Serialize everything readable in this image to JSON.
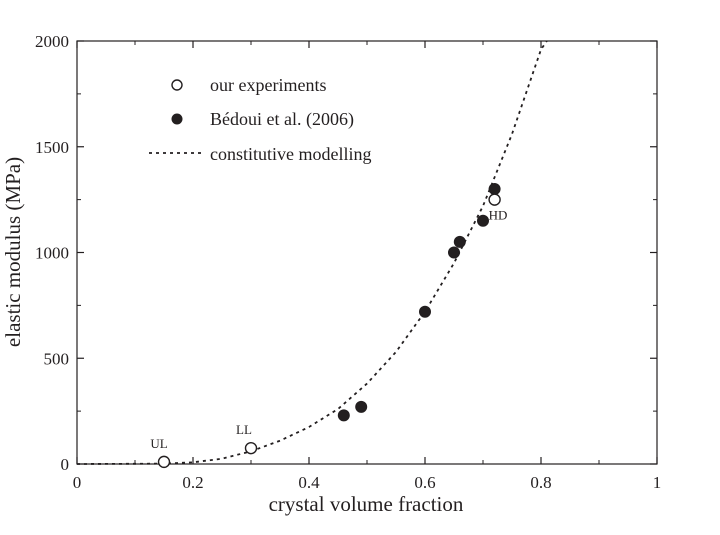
{
  "chart_data": {
    "type": "scatter",
    "xlabel": "crystal volume fraction",
    "ylabel": "elastic modulus (MPa)",
    "xlim": [
      0,
      1
    ],
    "ylim": [
      0,
      2000
    ],
    "xticks": [
      "0",
      "0.2",
      "0.4",
      "0.6",
      "0.8",
      "1"
    ],
    "yticks": [
      "0",
      "500",
      "1000",
      "1500",
      "2000"
    ],
    "grid": false,
    "legend_position": "top-left",
    "series": [
      {
        "name": "our experiments",
        "marker": "open-circle",
        "points": [
          {
            "x": 0.15,
            "y": 10,
            "label": "UL"
          },
          {
            "x": 0.3,
            "y": 75,
            "label": "LL"
          },
          {
            "x": 0.72,
            "y": 1250,
            "label": "HD"
          }
        ]
      },
      {
        "name": "Bédoui et al. (2006)",
        "marker": "filled-circle",
        "points": [
          {
            "x": 0.46,
            "y": 230
          },
          {
            "x": 0.49,
            "y": 270
          },
          {
            "x": 0.6,
            "y": 720
          },
          {
            "x": 0.65,
            "y": 1000
          },
          {
            "x": 0.66,
            "y": 1050
          },
          {
            "x": 0.7,
            "y": 1150
          },
          {
            "x": 0.72,
            "y": 1300
          }
        ]
      },
      {
        "name": "constitutive modelling",
        "style": "dotted-line",
        "points": [
          {
            "x": 0.0,
            "y": 0
          },
          {
            "x": 0.1,
            "y": 1
          },
          {
            "x": 0.15,
            "y": 2
          },
          {
            "x": 0.2,
            "y": 8
          },
          {
            "x": 0.25,
            "y": 25
          },
          {
            "x": 0.3,
            "y": 60
          },
          {
            "x": 0.35,
            "y": 110
          },
          {
            "x": 0.4,
            "y": 175
          },
          {
            "x": 0.45,
            "y": 260
          },
          {
            "x": 0.5,
            "y": 380
          },
          {
            "x": 0.55,
            "y": 530
          },
          {
            "x": 0.6,
            "y": 720
          },
          {
            "x": 0.65,
            "y": 950
          },
          {
            "x": 0.7,
            "y": 1220
          },
          {
            "x": 0.75,
            "y": 1560
          },
          {
            "x": 0.8,
            "y": 1960
          },
          {
            "x": 0.81,
            "y": 2000
          }
        ]
      }
    ],
    "colors": {
      "ink": "#231f20",
      "open_fill": "#ffffff"
    }
  }
}
